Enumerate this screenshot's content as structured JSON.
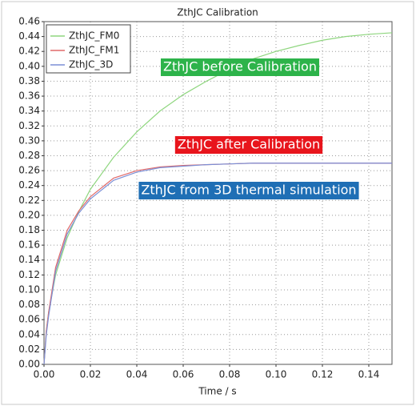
{
  "chart_data": {
    "type": "line",
    "title": "ZthJC Calibration",
    "x_label": "Time / s",
    "x": [
      0,
      0.001,
      0.002,
      0.005,
      0.01,
      0.015,
      0.02,
      0.03,
      0.04,
      0.05,
      0.06,
      0.07,
      0.08,
      0.09,
      0.1,
      0.11,
      0.12,
      0.13,
      0.14,
      0.15
    ],
    "series": [
      {
        "name": "ZthJC_FM0",
        "color": "#8fd67f",
        "values": [
          0,
          0.045,
          0.07,
          0.12,
          0.17,
          0.205,
          0.235,
          0.278,
          0.312,
          0.34,
          0.362,
          0.38,
          0.396,
          0.41,
          0.42,
          0.428,
          0.435,
          0.44,
          0.443,
          0.445
        ]
      },
      {
        "name": "ZthJC_FM1",
        "color": "#e06a6a",
        "values": [
          0,
          0.045,
          0.07,
          0.13,
          0.18,
          0.206,
          0.225,
          0.25,
          0.26,
          0.265,
          0.267,
          0.268,
          0.269,
          0.27,
          0.27,
          0.27,
          0.27,
          0.27,
          0.27,
          0.27
        ]
      },
      {
        "name": "ZthJC_3D",
        "color": "#7b8fd6",
        "values": [
          0,
          0.04,
          0.065,
          0.125,
          0.175,
          0.203,
          0.222,
          0.247,
          0.258,
          0.264,
          0.266,
          0.268,
          0.269,
          0.27,
          0.27,
          0.27,
          0.27,
          0.27,
          0.27,
          0.27
        ]
      }
    ],
    "annotations": [
      {
        "text": "ZthJC before Calibration",
        "color": "#2db34a"
      },
      {
        "text": "ZthJC after Calibration",
        "color": "#e8151c"
      },
      {
        "text": "ZthJC from 3D thermal simulation",
        "color": "#1f6fb5"
      }
    ],
    "xlim": [
      0,
      0.15
    ],
    "xticks": [
      {
        "value": 0,
        "label": "0.00"
      },
      {
        "value": 0.02,
        "label": "0.02"
      },
      {
        "value": 0.04,
        "label": "0.04"
      },
      {
        "value": 0.06,
        "label": "0.06"
      },
      {
        "value": 0.08,
        "label": "0.08"
      },
      {
        "value": 0.1,
        "label": "0.10"
      },
      {
        "value": 0.12,
        "label": "0.12"
      },
      {
        "value": 0.14,
        "label": "0.14"
      }
    ],
    "ylim": [
      0,
      0.46
    ],
    "yticks": [
      {
        "value": 0,
        "label": "0.00"
      },
      {
        "value": 0.02,
        "label": "0.02"
      },
      {
        "value": 0.04,
        "label": "0.04"
      },
      {
        "value": 0.06,
        "label": "0.06"
      },
      {
        "value": 0.08,
        "label": "0.08"
      },
      {
        "value": 0.1,
        "label": "0.10"
      },
      {
        "value": 0.12,
        "label": "0.12"
      },
      {
        "value": 0.14,
        "label": "0.14"
      },
      {
        "value": 0.16,
        "label": "0.16"
      },
      {
        "value": 0.18,
        "label": "0.18"
      },
      {
        "value": 0.2,
        "label": "0.20"
      },
      {
        "value": 0.22,
        "label": "0.22"
      },
      {
        "value": 0.24,
        "label": "0.24"
      },
      {
        "value": 0.26,
        "label": "0.26"
      },
      {
        "value": 0.28,
        "label": "0.28"
      },
      {
        "value": 0.3,
        "label": "0.30"
      },
      {
        "value": 0.32,
        "label": "0.32"
      },
      {
        "value": 0.34,
        "label": "0.34"
      },
      {
        "value": 0.36,
        "label": "0.36"
      },
      {
        "value": 0.38,
        "label": "0.38"
      },
      {
        "value": 0.4,
        "label": "0.40"
      },
      {
        "value": 0.42,
        "label": "0.42"
      },
      {
        "value": 0.44,
        "label": "0.44"
      },
      {
        "value": 0.46,
        "label": "0.46"
      }
    ],
    "grid": true,
    "legend_position": "upper-left"
  }
}
